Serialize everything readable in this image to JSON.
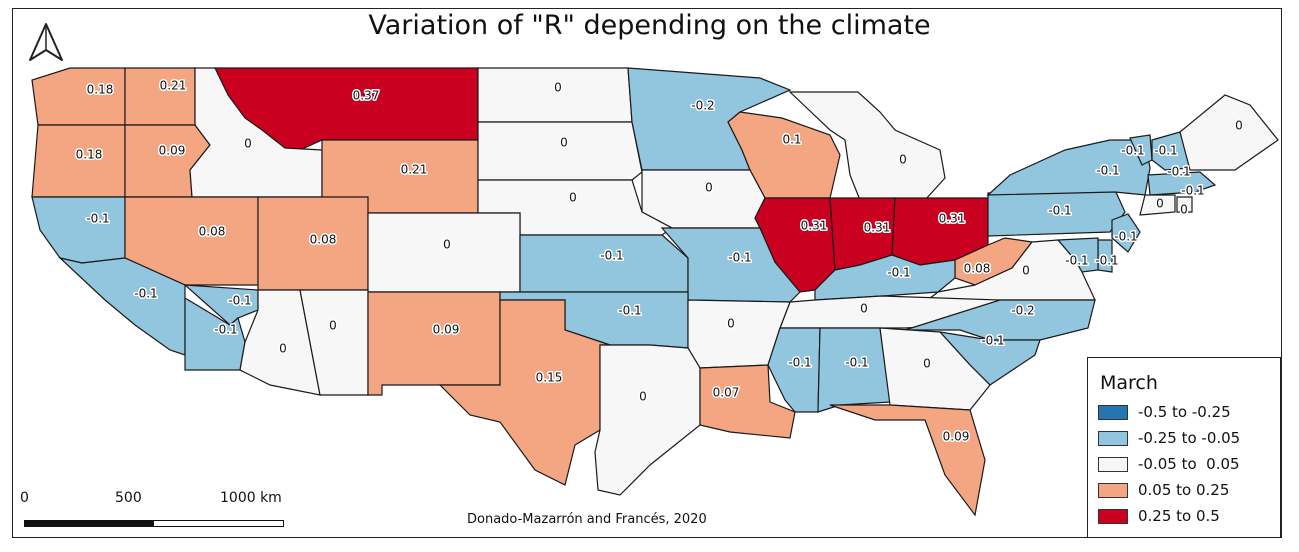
{
  "title": "Variation of \"R\" depending on the climate",
  "credit": "Donado-Mazarrón and Francés, 2020",
  "legend": {
    "title": "March",
    "classes": [
      {
        "label": "-0.5 to -0.25",
        "color": "#2575b0"
      },
      {
        "label": "-0.25 to -0.05",
        "color": "#92c5de"
      },
      {
        "label": "-0.05 to  0.05",
        "color": "#f7f7f7"
      },
      {
        "label": "0.05 to 0.25",
        "color": "#f4a582"
      },
      {
        "label": "0.25 to 0.5",
        "color": "#ca0020"
      }
    ]
  },
  "scale_bar": {
    "labels": [
      "0",
      "500",
      "1000 km"
    ]
  },
  "north_arrow": "north-arrow-icon",
  "states": [
    {
      "name": "Washington",
      "value": "0.18",
      "class": 3
    },
    {
      "name": "Idaho North",
      "value": "0.21",
      "class": 3
    },
    {
      "name": "Montana",
      "value": "0.37",
      "class": 4
    },
    {
      "name": "Oregon",
      "value": "0.18",
      "class": 3
    },
    {
      "name": "Idaho",
      "value": "0.09",
      "class": 3
    },
    {
      "name": "Idaho East",
      "value": "0",
      "class": 2
    },
    {
      "name": "Wyoming",
      "value": "0.21",
      "class": 3
    },
    {
      "name": "North Dakota",
      "value": "0",
      "class": 2
    },
    {
      "name": "South Dakota",
      "value": "0",
      "class": 2
    },
    {
      "name": "Minnesota",
      "value": "-0.2",
      "class": 1
    },
    {
      "name": "Wisconsin",
      "value": "0.1",
      "class": 3
    },
    {
      "name": "Michigan",
      "value": "0",
      "class": 2
    },
    {
      "name": "Iowa",
      "value": "0",
      "class": 2
    },
    {
      "name": "Nebraska",
      "value": "0",
      "class": 2
    },
    {
      "name": "Northern California",
      "value": "-0.1",
      "class": 1
    },
    {
      "name": "Nevada",
      "value": "0.08",
      "class": 3
    },
    {
      "name": "Utah",
      "value": "0.08",
      "class": 3
    },
    {
      "name": "Colorado",
      "value": "0",
      "class": 2
    },
    {
      "name": "Kansas",
      "value": "-0.1",
      "class": 1
    },
    {
      "name": "Missouri",
      "value": "-0.1",
      "class": 1
    },
    {
      "name": "Illinois",
      "value": "0.31",
      "class": 4
    },
    {
      "name": "Indiana",
      "value": "0.31",
      "class": 4
    },
    {
      "name": "Ohio",
      "value": "0.31",
      "class": 4
    },
    {
      "name": "Pennsylvania",
      "value": "-0.1",
      "class": 1
    },
    {
      "name": "New York",
      "value": "-0.1",
      "class": 1
    },
    {
      "name": "Vermont",
      "value": "-0.1",
      "class": 1
    },
    {
      "name": "New Hampshire",
      "value": "-0.1",
      "class": 1
    },
    {
      "name": "Maine",
      "value": "0",
      "class": 2
    },
    {
      "name": "Massachusetts",
      "value": "-0.1",
      "class": 1
    },
    {
      "name": "Connecticut",
      "value": "0",
      "class": 2
    },
    {
      "name": "Rhode Island",
      "value": "0",
      "class": 2
    },
    {
      "name": "New Jersey",
      "value": "-0.1",
      "class": 1
    },
    {
      "name": "Delaware",
      "value": "-0.1",
      "class": 1
    },
    {
      "name": "Maryland",
      "value": "-0.1",
      "class": 1
    },
    {
      "name": "West Virginia",
      "value": "0.08",
      "class": 3
    },
    {
      "name": "Virginia",
      "value": "0",
      "class": 2
    },
    {
      "name": "Kentucky",
      "value": "-0.1",
      "class": 1
    },
    {
      "name": "Tennessee",
      "value": "0",
      "class": 2
    },
    {
      "name": "North Carolina",
      "value": "-0.2",
      "class": 1
    },
    {
      "name": "South Carolina",
      "value": "-0.1",
      "class": 1
    },
    {
      "name": "Central California",
      "value": "-0.1",
      "class": 1
    },
    {
      "name": "Southern Nevada",
      "value": "-0.1",
      "class": 1
    },
    {
      "name": "Southern California",
      "value": "-0.1",
      "class": 1
    },
    {
      "name": "Arizona West",
      "value": "0",
      "class": 2
    },
    {
      "name": "Arizona",
      "value": "0",
      "class": 2
    },
    {
      "name": "New Mexico",
      "value": "0.09",
      "class": 3
    },
    {
      "name": "Oklahoma",
      "value": "-0.1",
      "class": 1
    },
    {
      "name": "Arkansas",
      "value": "0",
      "class": 2
    },
    {
      "name": "Mississippi",
      "value": "-0.1",
      "class": 1
    },
    {
      "name": "Alabama",
      "value": "-0.1",
      "class": 1
    },
    {
      "name": "Georgia",
      "value": "0",
      "class": 2
    },
    {
      "name": "Texas",
      "value": "0.15",
      "class": 3
    },
    {
      "name": "East Texas",
      "value": "0",
      "class": 2
    },
    {
      "name": "Louisiana",
      "value": "0.07",
      "class": 3
    },
    {
      "name": "Florida",
      "value": "0.09",
      "class": 3
    }
  ]
}
